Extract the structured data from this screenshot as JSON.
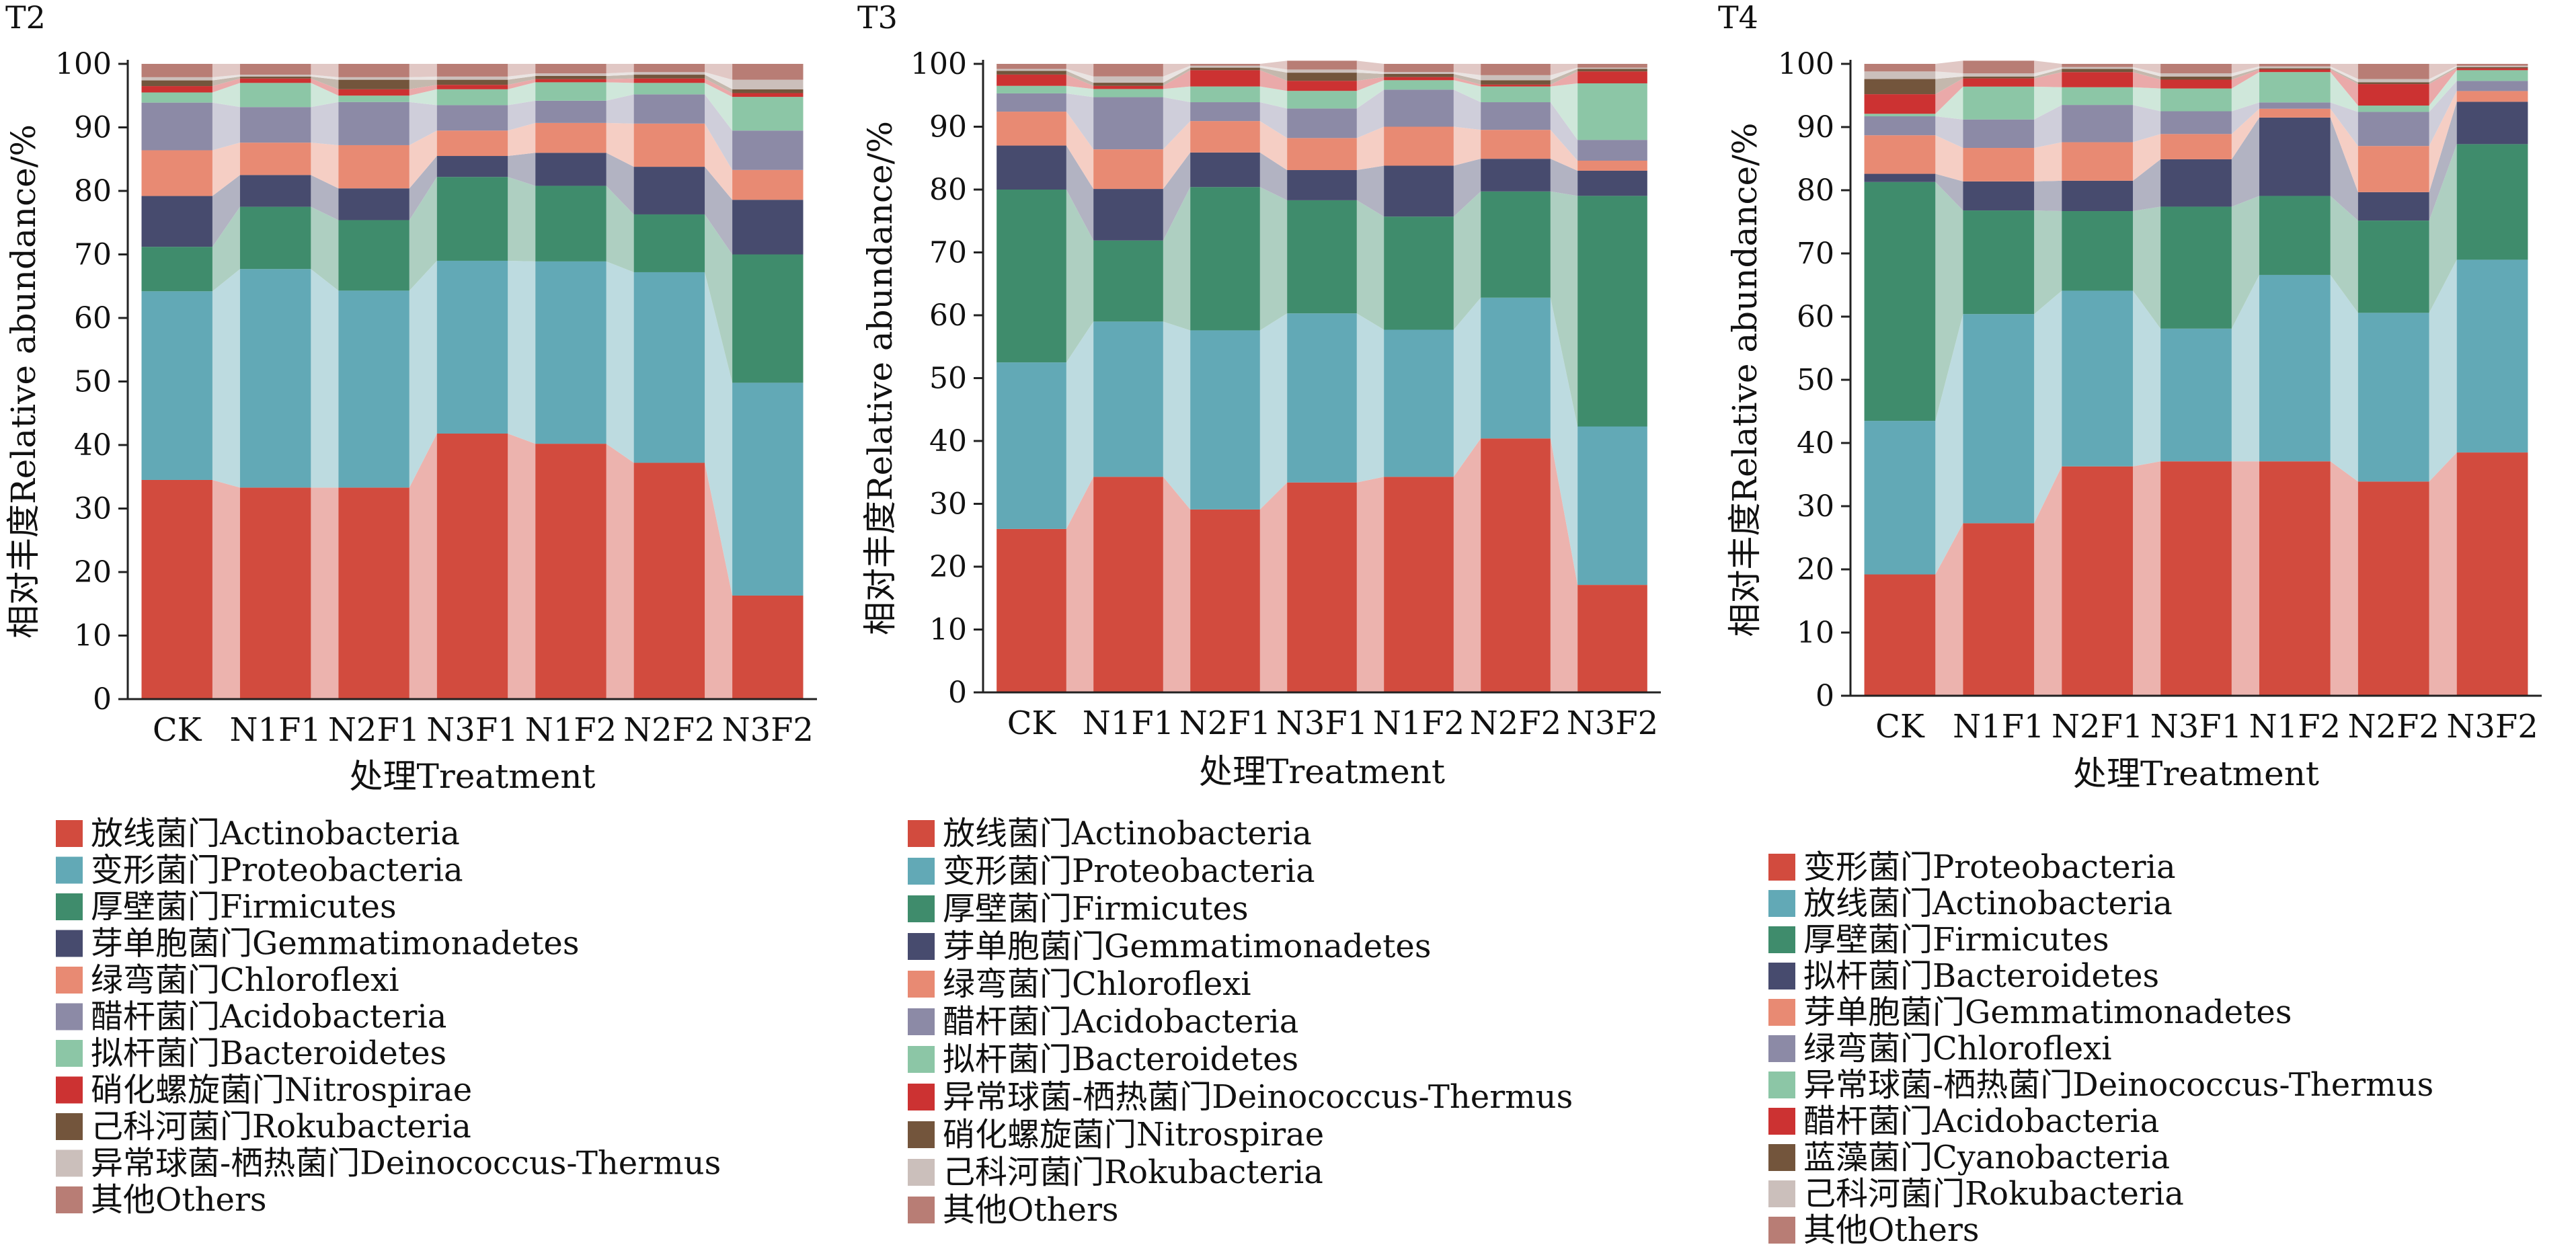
{
  "chart_data": [
    {
      "type": "bar",
      "stacked": true,
      "title": "T2",
      "xlabel": "处理Treatment",
      "ylabel": "相对丰度Relative abundance/%",
      "ylim": [
        0,
        100
      ],
      "yticks": [
        0,
        10,
        20,
        30,
        40,
        50,
        60,
        70,
        80,
        90,
        100
      ],
      "categories": [
        "CK",
        "N1F1",
        "N2F1",
        "N3F1",
        "N1F2",
        "N2F2",
        "N3F2"
      ],
      "series": [
        {
          "name": "放线菌门Actinobacteria",
          "color": "#d24b3e",
          "values": [
            34.5,
            33.3,
            33.3,
            41.8,
            40.2,
            37.2,
            16.3
          ]
        },
        {
          "name": "变形菌门Proteobacteria",
          "color": "#62a9b6",
          "values": [
            29.7,
            34.4,
            31.0,
            27.2,
            28.7,
            30.0,
            33.5
          ]
        },
        {
          "name": "厚壁菌门Firmicutes",
          "color": "#3f8c6c",
          "values": [
            7.0,
            9.8,
            11.1,
            13.2,
            11.9,
            9.1,
            20.2
          ]
        },
        {
          "name": "芽单胞菌门Gemmatimonadetes",
          "color": "#474b6e",
          "values": [
            8.0,
            5.0,
            5.0,
            3.3,
            5.2,
            7.5,
            8.6
          ]
        },
        {
          "name": "绿弯菌门Chloroflexi",
          "color": "#e88a73",
          "values": [
            7.2,
            5.1,
            6.8,
            4.0,
            4.7,
            6.8,
            4.7
          ]
        },
        {
          "name": "醋杆菌门Acidobacteria",
          "color": "#8c8aa6",
          "values": [
            7.5,
            5.6,
            6.8,
            4.0,
            3.5,
            4.6,
            6.2
          ]
        },
        {
          "name": "拟杆菌门Bacteroidetes",
          "color": "#8cc6a6",
          "values": [
            1.6,
            3.8,
            1.0,
            2.5,
            2.9,
            1.8,
            5.3
          ]
        },
        {
          "name": "硝化螺旋菌门Nitrospirae",
          "color": "#cc3232",
          "values": [
            1.0,
            0.7,
            1.0,
            0.7,
            0.5,
            0.7,
            0.6
          ]
        },
        {
          "name": "己科河菌门Rokubacteria",
          "color": "#73553c",
          "values": [
            0.9,
            0.3,
            1.5,
            0.8,
            0.5,
            0.6,
            0.6
          ]
        },
        {
          "name": "异常球菌-栖热菌门Deinococcus-Thermus",
          "color": "#cbbfbb",
          "values": [
            0.5,
            0.3,
            0.4,
            0.5,
            0.4,
            0.4,
            1.5
          ]
        },
        {
          "name": "其他Others",
          "color": "#b87d75",
          "values": [
            2.1,
            1.7,
            2.1,
            2.0,
            1.5,
            1.3,
            2.5
          ]
        }
      ]
    },
    {
      "type": "bar",
      "stacked": true,
      "title": "T3",
      "xlabel": "处理Treatment",
      "ylabel": "相对丰度Relative abundance/%",
      "ylim": [
        0,
        100
      ],
      "yticks": [
        0,
        10,
        20,
        30,
        40,
        50,
        60,
        70,
        80,
        90,
        100
      ],
      "categories": [
        "CK",
        "N1F1",
        "N2F1",
        "N3F1",
        "N1F2",
        "N2F2",
        "N3F2"
      ],
      "series": [
        {
          "name": "放线菌门Actinobacteria",
          "color": "#d24b3e",
          "values": [
            26.0,
            34.3,
            29.1,
            33.4,
            34.3,
            40.4,
            17.1
          ]
        },
        {
          "name": "变形菌门Proteobacteria",
          "color": "#62a9b6",
          "values": [
            26.5,
            24.7,
            28.5,
            26.9,
            23.4,
            22.4,
            25.2
          ]
        },
        {
          "name": "厚壁菌门Firmicutes",
          "color": "#3f8c6c",
          "values": [
            27.5,
            12.9,
            22.8,
            18.0,
            18.0,
            16.9,
            36.7
          ]
        },
        {
          "name": "芽单胞菌门Gemmatimonadetes",
          "color": "#474b6e",
          "values": [
            7.0,
            8.2,
            5.5,
            4.8,
            8.1,
            5.2,
            4.0
          ]
        },
        {
          "name": "绿弯菌门Chloroflexi",
          "color": "#e88a73",
          "values": [
            5.4,
            6.3,
            5.0,
            5.1,
            6.2,
            4.6,
            1.6
          ]
        },
        {
          "name": "醋杆菌门Acidobacteria",
          "color": "#8c8aa6",
          "values": [
            2.9,
            8.3,
            3.0,
            4.7,
            5.9,
            4.4,
            3.3
          ]
        },
        {
          "name": "拟杆菌门Bacteroidetes",
          "color": "#8cc6a6",
          "values": [
            1.2,
            1.3,
            2.5,
            2.8,
            1.5,
            2.5,
            9.0
          ]
        },
        {
          "name": "异常球菌-栖热菌门Deinococcus-Thermus",
          "color": "#cc3232",
          "values": [
            1.8,
            0.5,
            2.6,
            1.6,
            0.5,
            0.3,
            1.9
          ]
        },
        {
          "name": "硝化螺旋菌门Nitrospirae",
          "color": "#73553c",
          "values": [
            0.6,
            0.5,
            0.4,
            1.3,
            0.5,
            0.7,
            0.4
          ]
        },
        {
          "name": "己科河菌门Rokubacteria",
          "color": "#cbbfbb",
          "values": [
            0.3,
            1.0,
            0.3,
            0.5,
            0.3,
            0.8,
            0.2
          ]
        },
        {
          "name": "其他Others",
          "color": "#b87d75",
          "values": [
            0.8,
            2.0,
            0.3,
            1.4,
            1.3,
            1.8,
            0.6
          ]
        }
      ]
    },
    {
      "type": "bar",
      "stacked": true,
      "title": "T4",
      "xlabel": "处理Treatment",
      "ylabel": "相对丰度Relative abundance/%",
      "ylim": [
        0,
        100
      ],
      "yticks": [
        0,
        10,
        20,
        30,
        40,
        50,
        60,
        70,
        80,
        90,
        100
      ],
      "categories": [
        "CK",
        "N1F1",
        "N2F1",
        "N3F1",
        "N1F2",
        "N2F2",
        "N3F2"
      ],
      "series": [
        {
          "name": "变形菌门Proteobacteria",
          "color": "#d24b3e",
          "values": [
            19.2,
            27.3,
            36.3,
            37.1,
            37.1,
            33.9,
            38.5
          ]
        },
        {
          "name": "放线菌门Actinobacteria",
          "color": "#62a9b6",
          "values": [
            24.3,
            33.1,
            27.8,
            21.0,
            29.5,
            26.7,
            30.5
          ]
        },
        {
          "name": "厚壁菌门Firmicutes",
          "color": "#3f8c6c",
          "values": [
            37.8,
            16.4,
            12.6,
            19.3,
            12.5,
            14.6,
            18.3
          ]
        },
        {
          "name": "拟杆菌门Bacteroidetes",
          "color": "#474b6e",
          "values": [
            1.3,
            4.6,
            4.8,
            7.5,
            12.4,
            4.5,
            6.7
          ]
        },
        {
          "name": "芽单胞菌门Gemmatimonadetes",
          "color": "#e88a73",
          "values": [
            6.1,
            5.3,
            6.1,
            4.0,
            1.4,
            7.3,
            1.7
          ]
        },
        {
          "name": "绿弯菌门Chloroflexi",
          "color": "#8c8aa6",
          "values": [
            3.0,
            4.5,
            5.9,
            3.6,
            1.0,
            5.4,
            1.6
          ]
        },
        {
          "name": "异常球菌-栖热菌门Deinococcus-Thermus",
          "color": "#8cc6a6",
          "values": [
            0.4,
            5.2,
            2.8,
            3.6,
            4.8,
            1.0,
            1.7
          ]
        },
        {
          "name": "醋杆菌门Acidobacteria",
          "color": "#cc3232",
          "values": [
            3.1,
            1.3,
            2.4,
            1.4,
            0.4,
            3.4,
            0.3
          ]
        },
        {
          "name": "蓝藻菌门Cyanobacteria",
          "color": "#73553c",
          "values": [
            2.4,
            0.3,
            0.5,
            0.5,
            0.2,
            0.3,
            0.2
          ]
        },
        {
          "name": "己科河菌门Rokubacteria",
          "color": "#cbbfbb",
          "values": [
            1.2,
            0.5,
            0.3,
            0.5,
            0.3,
            0.5,
            0.2
          ]
        },
        {
          "name": "其他Others",
          "color": "#b87d75",
          "values": [
            1.2,
            2.0,
            0.5,
            1.5,
            0.4,
            2.4,
            0.3
          ]
        }
      ]
    }
  ]
}
